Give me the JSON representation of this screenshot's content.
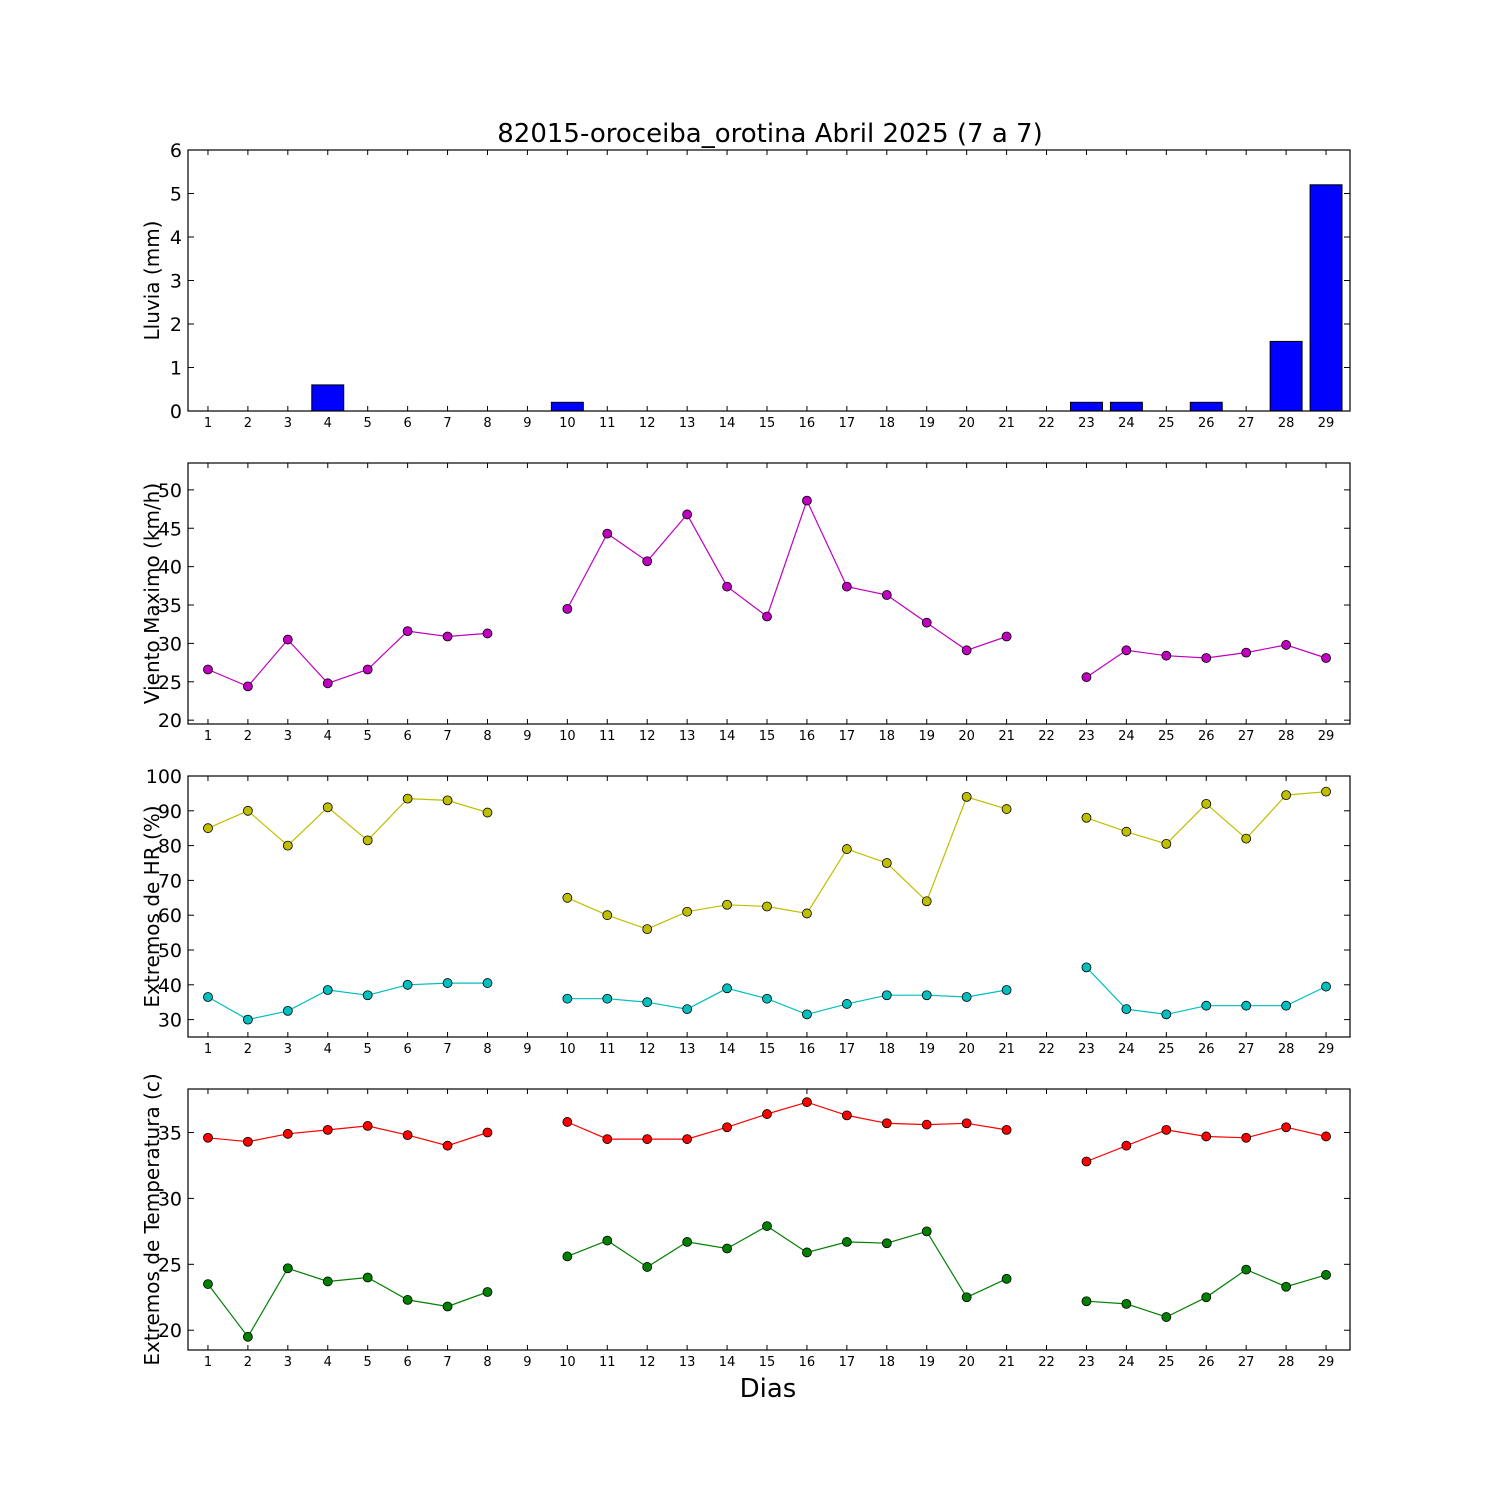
{
  "title": "82015-oroceiba_orotina Abril 2025  (7 a 7)",
  "xlabel": "Dias",
  "days": [
    1,
    2,
    3,
    4,
    5,
    6,
    7,
    8,
    9,
    10,
    11,
    12,
    13,
    14,
    15,
    16,
    17,
    18,
    19,
    20,
    21,
    22,
    23,
    24,
    25,
    26,
    27,
    28,
    29
  ],
  "chart_data": [
    {
      "type": "bar",
      "ylabel": "Lluvia (mm)",
      "ylim": [
        0,
        6
      ],
      "yticks": [
        0,
        1,
        2,
        3,
        4,
        5,
        6
      ],
      "color": "#0000ff",
      "series": [
        {
          "values": [
            0,
            0,
            0,
            0.6,
            0,
            0,
            0,
            0,
            null,
            0.2,
            0,
            0,
            0,
            0,
            0,
            0,
            0,
            0,
            0,
            0,
            0,
            null,
            0.2,
            0.2,
            0,
            0.2,
            0,
            1.6,
            5.2
          ]
        }
      ]
    },
    {
      "type": "line",
      "ylabel": "Viento Maximo (km/h)",
      "ylim": [
        19.5,
        53.5
      ],
      "yticks": [
        20,
        25,
        30,
        35,
        40,
        45,
        50
      ],
      "series": [
        {
          "color": "#bf00bf",
          "values": [
            26.6,
            24.4,
            30.5,
            24.8,
            26.6,
            31.6,
            30.9,
            31.3,
            null,
            34.5,
            44.3,
            40.7,
            46.8,
            37.4,
            33.5,
            48.6,
            37.4,
            36.3,
            32.7,
            29.1,
            30.9,
            null,
            25.6,
            29.1,
            28.4,
            28.1,
            28.8,
            29.8,
            28.1
          ]
        }
      ]
    },
    {
      "type": "line",
      "ylabel": "Extremos de HR (%)",
      "ylim": [
        25,
        100
      ],
      "yticks": [
        30,
        40,
        50,
        60,
        70,
        80,
        90,
        100
      ],
      "series": [
        {
          "color": "#bfbf00",
          "values": [
            85,
            90,
            80,
            91,
            81.5,
            93.5,
            93,
            89.5,
            null,
            65,
            60,
            56,
            61,
            63,
            62.5,
            60.5,
            79,
            75,
            64,
            94,
            90.5,
            null,
            88,
            84,
            80.5,
            92,
            82,
            94.5,
            95.5
          ]
        },
        {
          "color": "#00bfbf",
          "values": [
            36.5,
            30,
            32.5,
            38.5,
            37,
            40,
            40.5,
            40.5,
            null,
            36,
            36,
            35,
            33,
            39,
            36,
            31.5,
            34.5,
            37,
            37,
            36.5,
            38.5,
            null,
            45,
            33,
            31.5,
            34,
            34,
            34,
            39.5
          ]
        }
      ]
    },
    {
      "type": "line",
      "ylabel": "Extremos de Temperatura (c)",
      "ylim": [
        18.5,
        38.3
      ],
      "yticks": [
        20,
        25,
        30,
        35
      ],
      "series": [
        {
          "color": "#ff0000",
          "values": [
            34.6,
            34.3,
            34.9,
            35.2,
            35.5,
            34.8,
            34.0,
            35.0,
            null,
            35.8,
            34.5,
            34.5,
            34.5,
            35.4,
            36.4,
            37.3,
            36.3,
            35.7,
            35.6,
            35.7,
            35.2,
            null,
            32.8,
            34.0,
            35.2,
            34.7,
            34.6,
            35.4,
            34.7
          ]
        },
        {
          "color": "#008000",
          "values": [
            23.5,
            19.5,
            24.7,
            23.7,
            24.0,
            22.3,
            21.8,
            22.9,
            null,
            25.6,
            26.8,
            24.8,
            26.7,
            26.2,
            27.9,
            25.9,
            26.7,
            26.6,
            27.5,
            22.5,
            23.9,
            null,
            22.2,
            22.0,
            21.0,
            22.5,
            24.6,
            23.3,
            24.2
          ]
        }
      ]
    }
  ]
}
